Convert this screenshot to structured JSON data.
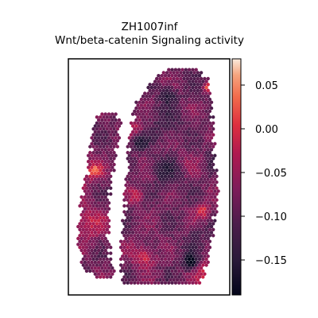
{
  "chart_data": {
    "type": "heatmap",
    "title": "ZH1007inf",
    "subtitle": "Wnt/beta-catenin Signaling activity",
    "xlabel": "",
    "ylabel": "",
    "colorbar": {
      "colormap": "rocket",
      "vmin": -0.19,
      "vmax": 0.08,
      "ticks": [
        0.05,
        0.0,
        -0.05,
        -0.1,
        -0.15
      ],
      "tick_labels": [
        "0.05",
        "0.00",
        "−0.05",
        "−0.10",
        "−0.15"
      ]
    },
    "grid": false,
    "legend": "colorbar-right",
    "spot_value_range": [
      -0.19,
      0.08
    ],
    "regions": [
      {
        "name": "left-strip",
        "spots": "approx 180",
        "mean_value": -0.08
      },
      {
        "name": "main-tissue",
        "spots": "approx 900",
        "mean_value": -0.09
      }
    ]
  }
}
